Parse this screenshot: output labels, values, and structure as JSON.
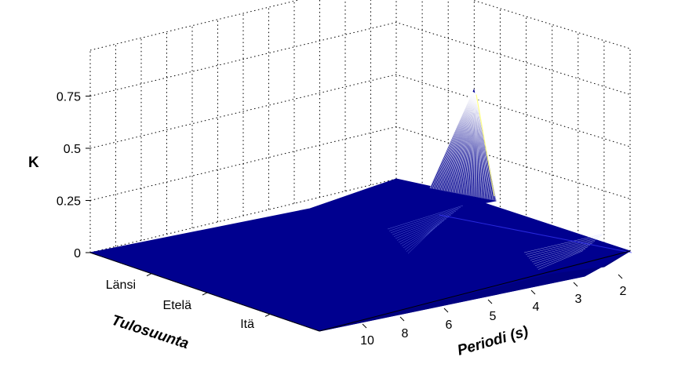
{
  "chart_data": {
    "type": "surface3d",
    "zlabel": "K",
    "ylabel": "Periodi (s)",
    "xlabel": "Tulosuunta",
    "z_ticks": [
      0,
      0.25,
      0.5,
      0.75
    ],
    "z_tick_labels": [
      "0",
      "0.25",
      "0.5",
      "0.75"
    ],
    "period_ticks": [
      10,
      8,
      6,
      5,
      4,
      3,
      2
    ],
    "period_tick_labels": [
      "10",
      "8",
      "6",
      "5",
      "4",
      "3",
      "2"
    ],
    "direction_tick_labels": [
      "Länsi",
      "Etelä",
      "Itä"
    ],
    "grid": true,
    "surface_color": "#00008f",
    "peak_color": "#ffffff",
    "surface_points": [
      {
        "direction": 0,
        "period": 2,
        "K": 0.0
      },
      {
        "direction": 0,
        "period": 4.5,
        "K": 0.02
      },
      {
        "direction": 0,
        "period": 6,
        "K": 0.1
      },
      {
        "direction": 0,
        "period": 10,
        "K": 0.0
      },
      {
        "direction": 0.5,
        "period": 4.8,
        "K": 0.78
      },
      {
        "direction": 0.5,
        "period": 2.5,
        "K": 0.04
      },
      {
        "direction": 1,
        "period": 10,
        "K": 0.0
      },
      {
        "direction": 1,
        "period": 2,
        "K": 0.0
      }
    ]
  }
}
